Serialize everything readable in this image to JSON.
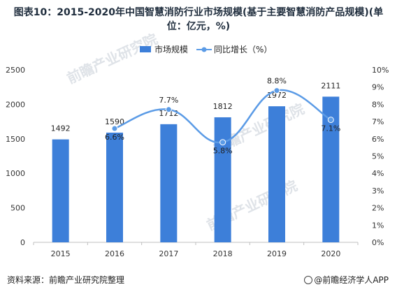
{
  "title": "图表10：2015-2020年中国智慧消防行业市场规模(基于主要智慧消防产品规模)(单位：亿元，%)",
  "source": "资料来源：前瞻产业研究院整理",
  "brand": "@前瞻经济学人APP",
  "watermark": "前瞻产业研究院",
  "colors": {
    "bar": "#3d7fd9",
    "line": "#5b9be6",
    "axis": "#bfbfbf"
  },
  "chart_data": {
    "type": "bar",
    "categories": [
      "2015",
      "2016",
      "2017",
      "2018",
      "2019",
      "2020"
    ],
    "series": [
      {
        "name": "市场规模",
        "type": "bar",
        "axis": "left",
        "values": [
          1492,
          1590,
          1712,
          1812,
          1972,
          2111
        ],
        "labels": [
          "1492",
          "1590",
          "1712",
          "1812",
          "1972",
          "2111"
        ]
      },
      {
        "name": "同比增长（%）",
        "type": "line",
        "axis": "right",
        "x": [
          "2016",
          "2017",
          "2018",
          "2019",
          "2020"
        ],
        "values": [
          6.6,
          7.7,
          5.8,
          8.8,
          7.1
        ],
        "labels": [
          "6.6%",
          "7.7%",
          "5.8%",
          "8.8%",
          "7.1%"
        ]
      }
    ],
    "left_axis": {
      "ylim": [
        0,
        2500
      ],
      "ticks": [
        "0",
        "500",
        "1000",
        "1500",
        "2000",
        "2500"
      ]
    },
    "right_axis": {
      "ylim": [
        0,
        10
      ],
      "ticks": [
        "0%",
        "1%",
        "2%",
        "3%",
        "4%",
        "5%",
        "6%",
        "7%",
        "8%",
        "9%",
        "10%"
      ]
    },
    "legend_position": "top-right",
    "grid": false
  }
}
